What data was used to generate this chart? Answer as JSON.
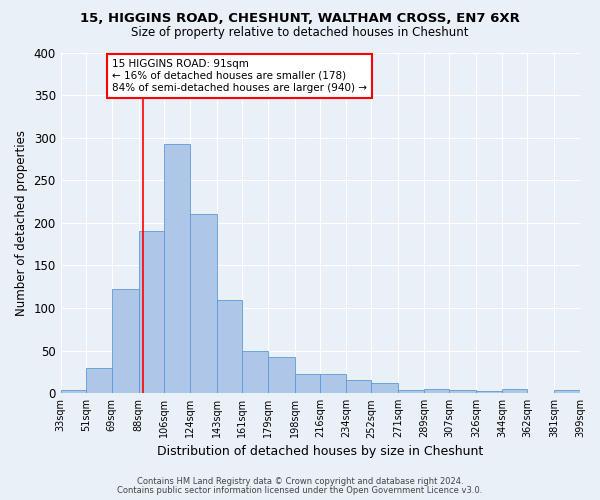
{
  "title1": "15, HIGGINS ROAD, CHESHUNT, WALTHAM CROSS, EN7 6XR",
  "title2": "Size of property relative to detached houses in Cheshunt",
  "xlabel": "Distribution of detached houses by size in Cheshunt",
  "ylabel": "Number of detached properties",
  "bin_labels": [
    "33sqm",
    "51sqm",
    "69sqm",
    "88sqm",
    "106sqm",
    "124sqm",
    "143sqm",
    "161sqm",
    "179sqm",
    "198sqm",
    "216sqm",
    "234sqm",
    "252sqm",
    "271sqm",
    "289sqm",
    "307sqm",
    "326sqm",
    "344sqm",
    "362sqm",
    "381sqm",
    "399sqm"
  ],
  "bar_heights": [
    4,
    30,
    122,
    190,
    293,
    210,
    109,
    50,
    43,
    22,
    22,
    16,
    12,
    4,
    5,
    4,
    2,
    5,
    0,
    4
  ],
  "bar_color": "#aec6e8",
  "bar_edge_color": "#5b9bd5",
  "bg_color": "#eaf0f8",
  "grid_color": "#ffffff",
  "red_line_x": 91,
  "bin_edges": [
    33,
    51,
    69,
    88,
    106,
    124,
    143,
    161,
    179,
    198,
    216,
    234,
    252,
    271,
    289,
    307,
    326,
    344,
    362,
    381,
    399
  ],
  "annotation_line1": "15 HIGGINS ROAD: 91sqm",
  "annotation_line2": "← 16% of detached houses are smaller (178)",
  "annotation_line3": "84% of semi-detached houses are larger (940) →",
  "footer1": "Contains HM Land Registry data © Crown copyright and database right 2024.",
  "footer2": "Contains public sector information licensed under the Open Government Licence v3.0.",
  "ylim": [
    0,
    400
  ],
  "yticks": [
    0,
    50,
    100,
    150,
    200,
    250,
    300,
    350,
    400
  ]
}
